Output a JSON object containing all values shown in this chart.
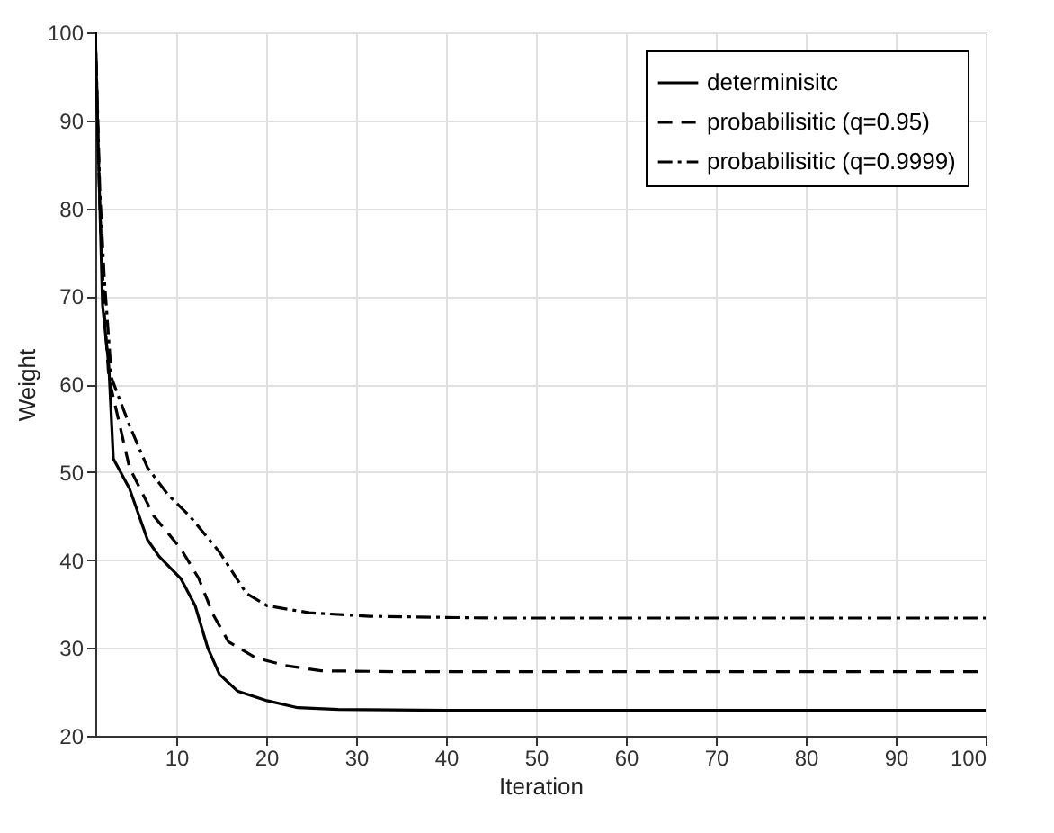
{
  "chart_data": {
    "type": "line",
    "xlabel": "Iteration",
    "ylabel": "Weight",
    "xlim": [
      1,
      100
    ],
    "ylim": [
      20,
      100
    ],
    "xticks": [
      10,
      20,
      30,
      40,
      50,
      60,
      70,
      80,
      90,
      100
    ],
    "yticks": [
      20,
      30,
      40,
      50,
      60,
      70,
      80,
      90,
      100
    ],
    "grid": true,
    "legend": "top right",
    "series": [
      {
        "name": "determinisitc",
        "color": "#000000",
        "line_style": "solid",
        "x": [
          1,
          1.4,
          1.8,
          2.5,
          3,
          4.8,
          6.8,
          8.1,
          10.5,
          12.1,
          13.5,
          14.8,
          16.8,
          20.1,
          23.5,
          28,
          40,
          60,
          80,
          100
        ],
        "values": [
          100,
          84,
          69,
          62,
          51.5,
          48.1,
          42.3,
          40.4,
          37.9,
          34.8,
          30,
          27,
          25.1,
          24,
          23.2,
          23,
          22.9,
          22.9,
          22.9,
          22.9
        ]
      },
      {
        "name": "probabilisitic (q=0.95)",
        "color": "#000000",
        "line_style": "dashed",
        "x": [
          1,
          1.5,
          2,
          2.5,
          4.8,
          7.5,
          10.5,
          12.5,
          14.1,
          15.8,
          18.8,
          22.1,
          26.1,
          35,
          50,
          75,
          100
        ],
        "values": [
          100,
          80,
          68,
          60.7,
          50.5,
          45,
          41.3,
          37.9,
          33.8,
          30.7,
          28.9,
          28,
          27.4,
          27.3,
          27.3,
          27.3,
          27.3
        ]
      },
      {
        "name": "probabilisitic (q=0.9999)",
        "color": "#000000",
        "line_style": "dashdot",
        "x": [
          1,
          1.5,
          2,
          2.8,
          4.8,
          6.8,
          9.1,
          11.5,
          14.8,
          17.8,
          20.1,
          24.8,
          31.5,
          45,
          70,
          100
        ],
        "values": [
          100,
          82,
          72,
          60.7,
          55.3,
          50.5,
          47.4,
          45,
          40.9,
          36.2,
          34.8,
          34,
          33.6,
          33.4,
          33.4,
          33.4
        ]
      }
    ]
  }
}
